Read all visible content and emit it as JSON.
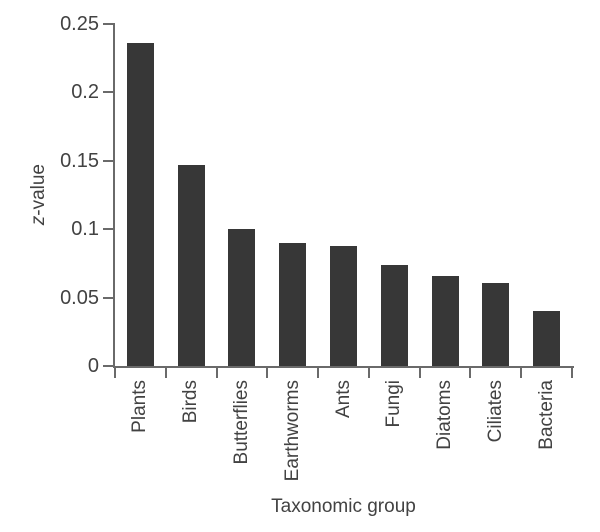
{
  "chart_data": {
    "type": "bar",
    "title": "",
    "xlabel": "Taxonomic group",
    "ylabel": "z-value",
    "ylabel_italic": "z",
    "ylabel_rest": "-value",
    "categories": [
      "Plants",
      "Birds",
      "Butterflies",
      "Earthworms",
      "Ants",
      "Fungi",
      "Diatoms",
      "Ciliates",
      "Bacteria"
    ],
    "values": [
      0.236,
      0.147,
      0.1,
      0.09,
      0.088,
      0.074,
      0.066,
      0.061,
      0.04
    ],
    "ylim": [
      0,
      0.25
    ],
    "yticks": {
      "values": [
        0,
        0.05,
        0.1,
        0.15,
        0.2,
        0.25
      ],
      "labels": [
        "0",
        "0.05",
        "0.1",
        "0.15",
        "0.2",
        "0.25"
      ]
    },
    "grid": false,
    "legend": null,
    "colors": {
      "bar": "#373737",
      "axis": "#6a6a6a",
      "text": "#424242"
    }
  }
}
